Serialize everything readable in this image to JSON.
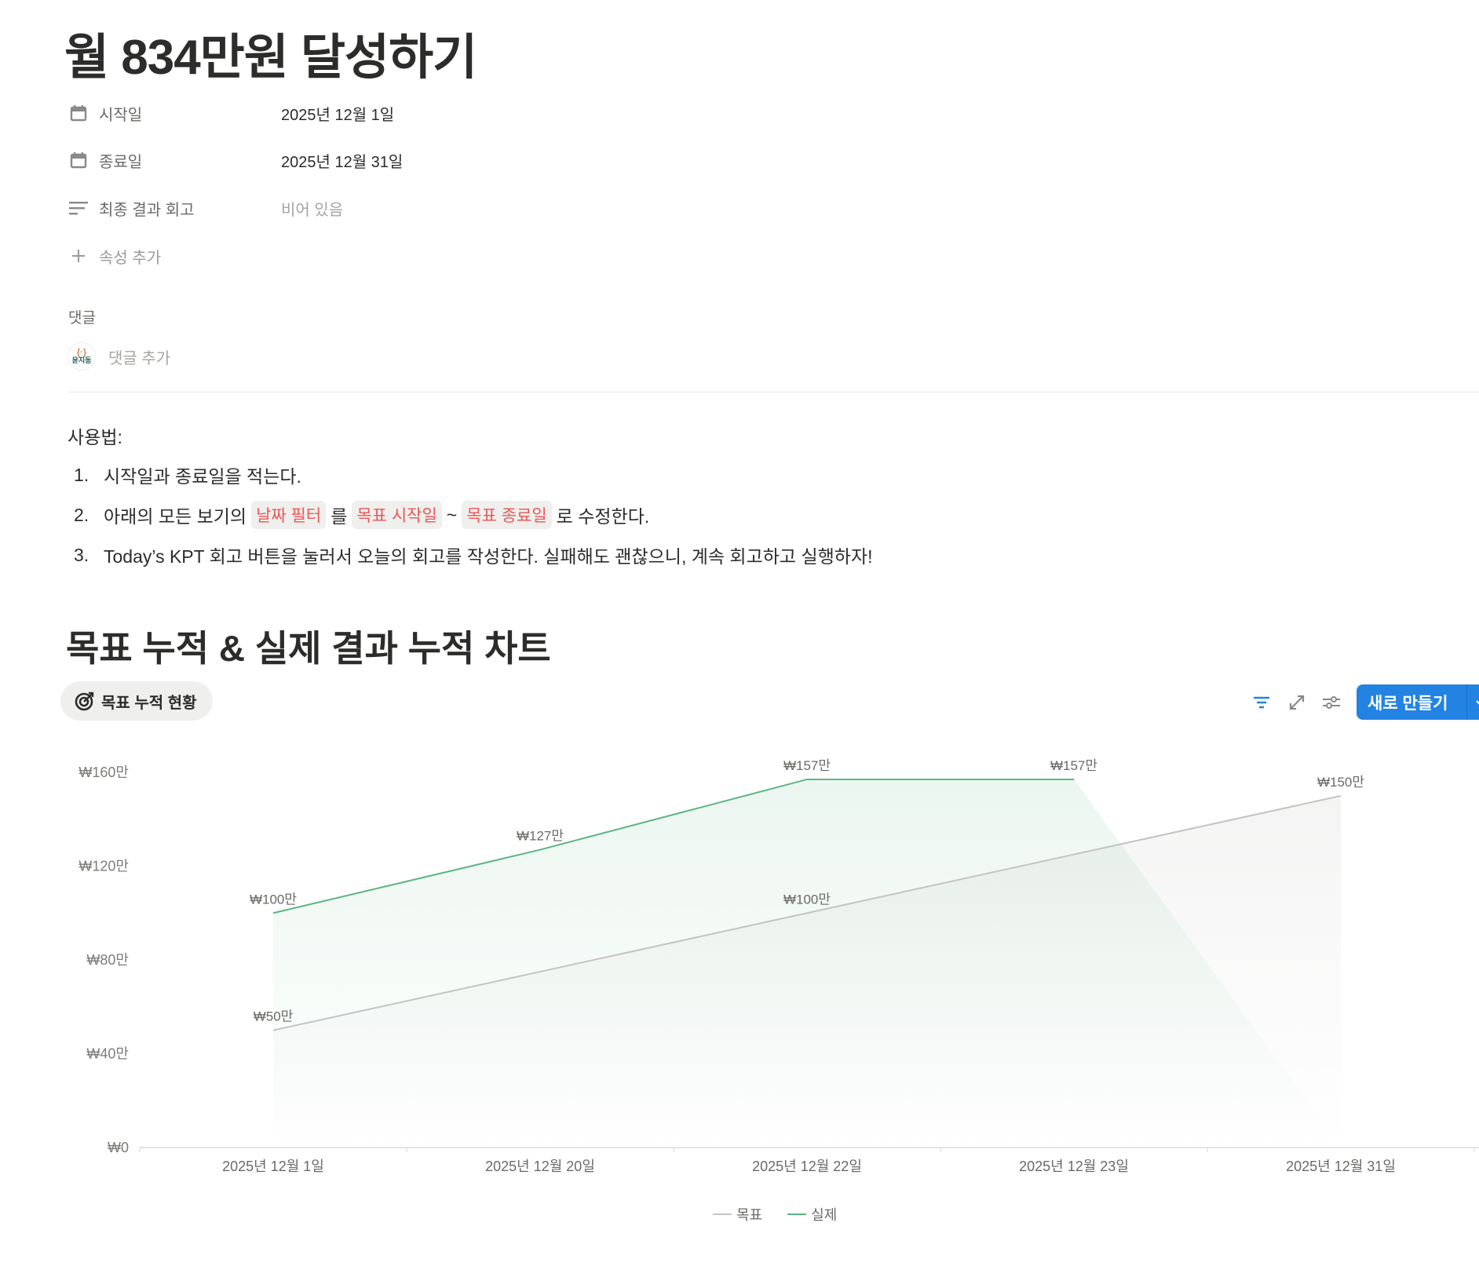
{
  "page": {
    "title": "월 834만원 달성하기",
    "properties": [
      {
        "icon": "calendar-icon",
        "label": "시작일",
        "value": "2025년 12월 1일"
      },
      {
        "icon": "calendar-icon",
        "label": "종료일",
        "value": "2025년 12월 31일"
      },
      {
        "icon": "text-lines-icon",
        "label": "최종 결과 회고",
        "value": "비어 있음"
      }
    ],
    "add_property": "속성 추가",
    "comments_label": "댓글",
    "add_comment": "댓글 추가",
    "avatar_text": "윤지동"
  },
  "usage": {
    "heading": "사용법:",
    "items": [
      {
        "num": "1.",
        "text": "시작일과 종료일을 적는다."
      },
      {
        "num": "2.",
        "pre": "아래의 모든 보기의",
        "code1": "날짜 필터",
        "mid1": "를",
        "code2": "목표 시작일",
        "mid2": "~",
        "code3": "목표 종료일",
        "post": "로 수정한다."
      },
      {
        "num": "3.",
        "text": "Today’s KPT 회고 버튼을 눌러서 오늘의 회고를 작성한다. 실패해도 괜찮으니, 계속 회고하고 실행하자!"
      }
    ]
  },
  "section": {
    "heading": "목표 누적 & 실제 결과 누적 차트",
    "view_tab": "목표 누적 현황",
    "new_button": "새로 만들기",
    "accent": "#2383e2"
  },
  "chart_data": {
    "type": "area",
    "categories": [
      "2025년 12월 1일",
      "2025년 12월 20일",
      "2025년 12월 22일",
      "2025년 12월 23일",
      "2025년 12월 31일"
    ],
    "y_unit": "만원",
    "ylim": [
      0,
      160
    ],
    "y_ticks": [
      0,
      40,
      80,
      120,
      160
    ],
    "y_tick_labels": [
      "₩0",
      "₩40만",
      "₩80만",
      "₩120만",
      "₩160만"
    ],
    "grid": false,
    "legend": "bottom",
    "series": [
      {
        "name": "목표",
        "color": "#c4c4c2",
        "values": [
          50,
          75,
          100,
          125,
          150
        ],
        "labels": [
          "₩50만",
          "",
          "₩100만",
          "",
          "₩150만"
        ]
      },
      {
        "name": "실제",
        "color": "#5db683",
        "values": [
          100,
          127,
          157,
          157,
          0
        ],
        "labels": [
          "₩100만",
          "₩127만",
          "₩157만",
          "₩157만",
          ""
        ]
      }
    ]
  }
}
